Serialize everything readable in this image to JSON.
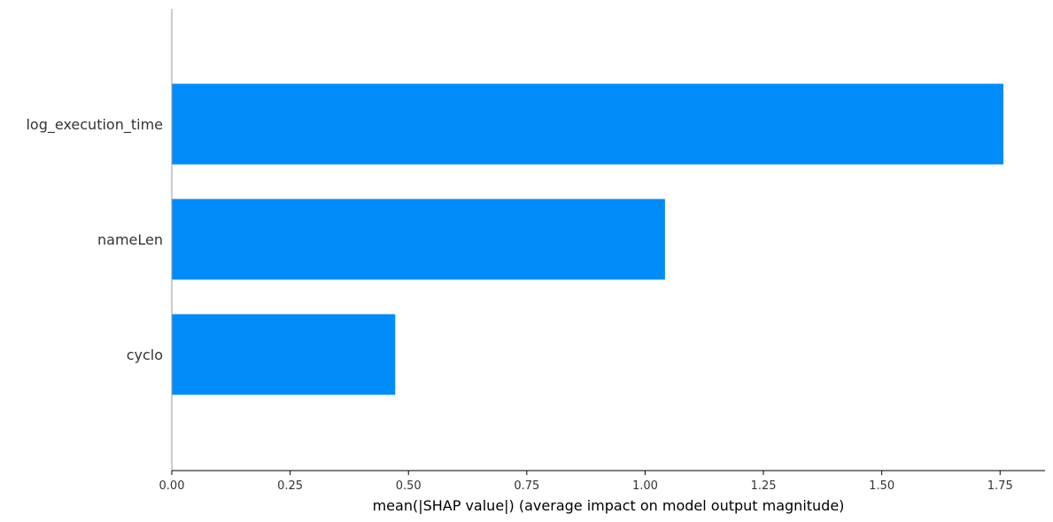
{
  "chart_data": {
    "type": "bar",
    "orientation": "horizontal",
    "title": "",
    "xlabel": "mean(|SHAP value|) (average impact on model output magnitude)",
    "ylabel": "",
    "categories": [
      "log_execution_time",
      "nameLen",
      "cyclo"
    ],
    "values": [
      1.757,
      1.042,
      0.472
    ],
    "xlim": [
      0,
      1.85
    ],
    "xticks": [
      0.0,
      0.25,
      0.5,
      0.75,
      1.0,
      1.25,
      1.5,
      1.75
    ],
    "xtick_labels": [
      "0.00",
      "0.25",
      "0.50",
      "0.75",
      "1.00",
      "1.25",
      "1.50",
      "1.75"
    ],
    "bar_color": "#008bfb",
    "axis_color": "#000000",
    "grid": false,
    "legend": "none"
  }
}
